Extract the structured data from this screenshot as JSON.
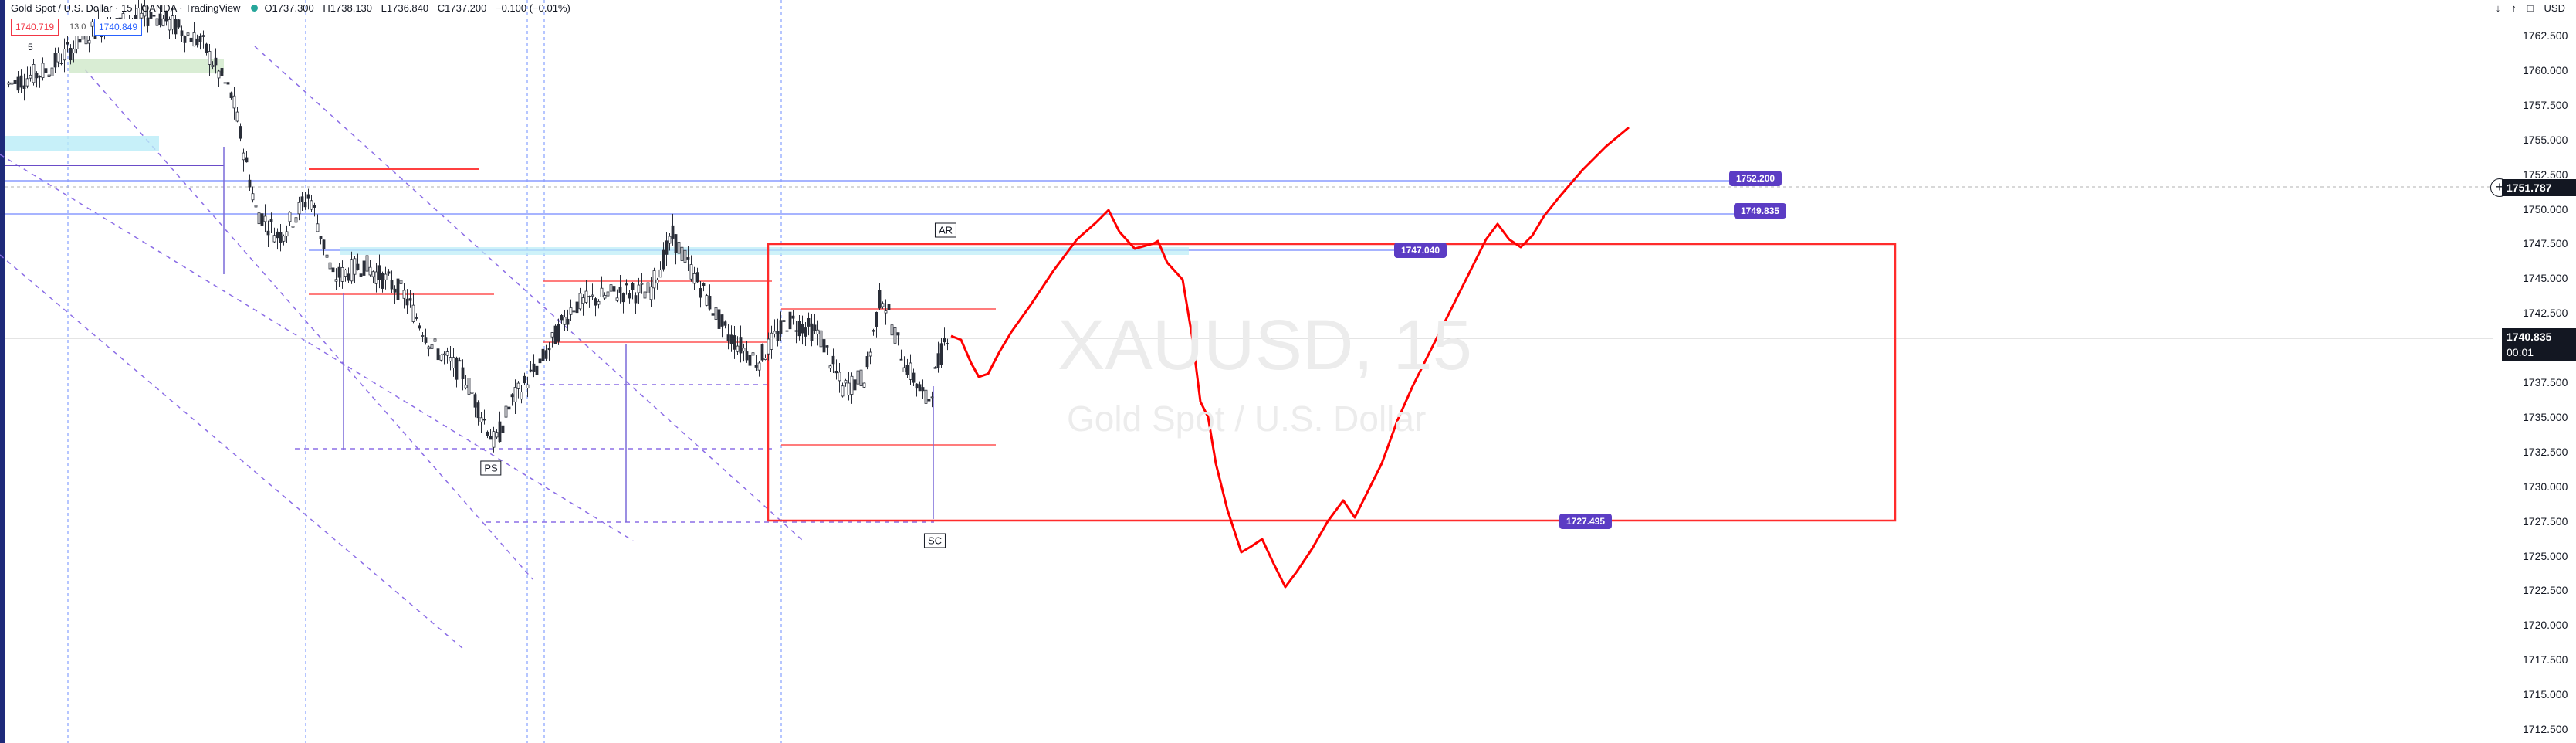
{
  "header": {
    "title": "Gold Spot / U.S. Dollar · 15 · OANDA · TradingView",
    "ohlc": {
      "open": "O1737.300",
      "high": "H1738.130",
      "low": "L1736.840",
      "close": "C1737.200",
      "change": "−0.100 (−0.01%)"
    },
    "sell_price": "1740.719",
    "buy_price": "1740.849",
    "spread": "13.0",
    "interval_caret": "5"
  },
  "watermark": {
    "symbol": "XAUUSD, 15",
    "description": "Gold Spot / U.S. Dollar"
  },
  "top_right": {
    "currency": "USD",
    "icons": [
      "arrow-down-icon",
      "arrow-up-icon",
      "window-icon"
    ]
  },
  "price_axis": {
    "labels": [
      "1762.500",
      "1760.000",
      "1757.500",
      "1755.000",
      "1752.500",
      "1750.000",
      "1747.500",
      "1745.000",
      "1742.500",
      "1740.000",
      "1737.500",
      "1735.000",
      "1732.500",
      "1730.000",
      "1727.500",
      "1725.000",
      "1722.500",
      "1720.000",
      "1717.500",
      "1715.000",
      "1712.500"
    ],
    "crosshair_price": "1751.787",
    "last_price": "1740.835",
    "countdown": "00:01"
  },
  "level_tags": [
    {
      "text": "1752.200",
      "price": 1752.2
    },
    {
      "text": "1749.835",
      "price": 1749.835
    },
    {
      "text": "1747.040",
      "price": 1747.04
    },
    {
      "text": "1727.495",
      "price": 1727.495
    }
  ],
  "annotations": {
    "ps": "PS",
    "ar": "AR",
    "sc": "SC"
  },
  "colors": {
    "up": "#26a69a",
    "down": "#131722",
    "drawing_red": "#ff0000",
    "tag_purple": "#5b3cc4",
    "line_blue": "#8a9cff",
    "guide_blue": "#2962ff"
  }
}
